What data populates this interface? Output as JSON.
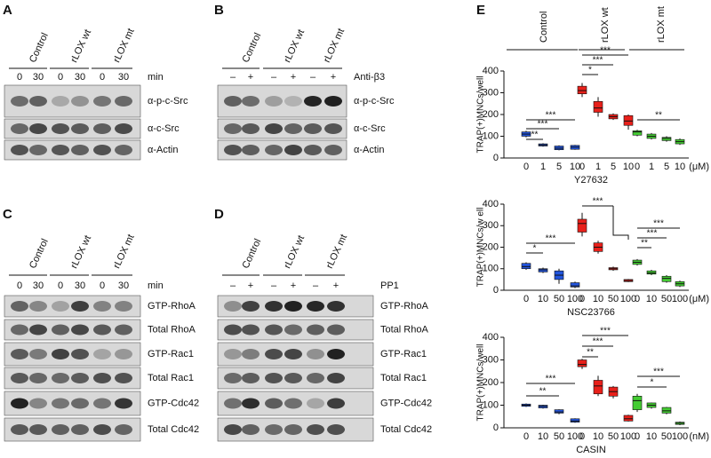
{
  "blots": [
    {
      "letter": "A",
      "headers": [
        "Control",
        "rLOX wt",
        "rLOX mt"
      ],
      "lanes": [
        "0",
        "30",
        "0",
        "30",
        "0",
        "30"
      ],
      "unit": "min",
      "rows": [
        "α-p-c-Src",
        "α-c-Src",
        "α-Actin"
      ]
    },
    {
      "letter": "B",
      "headers": [
        "Control",
        "rLOX wt",
        "rLOX mt"
      ],
      "lanes": [
        "–",
        "+",
        "–",
        "+",
        "–",
        "+"
      ],
      "unit": "Anti-β3",
      "rows": [
        "α-p-c-Src",
        "α-c-Src",
        "α-Actin"
      ]
    },
    {
      "letter": "C",
      "headers": [
        "Control",
        "rLOX wt",
        "rLOX mt"
      ],
      "lanes": [
        "0",
        "30",
        "0",
        "30",
        "0",
        "30"
      ],
      "unit": "min",
      "rows": [
        "GTP-RhoA",
        "Total RhoA",
        "GTP-Rac1",
        "Total Rac1",
        "GTP-Cdc42",
        "Total Cdc42"
      ]
    },
    {
      "letter": "D",
      "headers": [
        "Control",
        "rLOX wt",
        "rLOX mt"
      ],
      "lanes": [
        "–",
        "+",
        "–",
        "+",
        "–",
        "+"
      ],
      "unit": "PP1",
      "rows": [
        "GTP-RhoA",
        "Total RhoA",
        "GTP-Rac1",
        "Total Rac1",
        "GTP-Cdc42",
        "Total Cdc42"
      ]
    }
  ],
  "panel_e": {
    "letter": "E",
    "groups": [
      "Control",
      "rLOX wt",
      "rLOX mt"
    ]
  },
  "chart_data": [
    {
      "type": "box",
      "y_label": "TRAP(+)MNCs/well",
      "x_label": "Y27632",
      "unit": "(μM)",
      "categories": [
        "0",
        "1",
        "5",
        "10"
      ],
      "ylim": [
        0,
        400
      ],
      "yticks": [
        0,
        100,
        200,
        300,
        400
      ],
      "series": [
        {
          "color": "#2255dd",
          "median": [
            110,
            60,
            45,
            50
          ],
          "q1": [
            100,
            55,
            38,
            40
          ],
          "q3": [
            120,
            65,
            55,
            58
          ],
          "min": [
            95,
            52,
            35,
            38
          ],
          "max": [
            125,
            68,
            58,
            60
          ]
        },
        {
          "color": "#e8201a",
          "median": [
            310,
            230,
            190,
            170
          ],
          "q1": [
            295,
            210,
            180,
            150
          ],
          "q3": [
            330,
            260,
            200,
            195
          ],
          "min": [
            280,
            190,
            175,
            130
          ],
          "max": [
            345,
            280,
            205,
            200
          ]
        },
        {
          "color": "#44cc33",
          "median": [
            120,
            100,
            90,
            75
          ],
          "q1": [
            105,
            90,
            80,
            65
          ],
          "q3": [
            125,
            110,
            95,
            85
          ],
          "min": [
            100,
            85,
            75,
            60
          ],
          "max": [
            130,
            115,
            100,
            90
          ]
        }
      ],
      "annotations": [
        "***",
        "***",
        "**",
        "***",
        "***",
        "*",
        "**"
      ]
    },
    {
      "type": "box",
      "y_label": "TRAP(+)MNCs/w ell",
      "x_label": "NSC23766",
      "unit": "(μM)",
      "categories": [
        "0",
        "10",
        "50",
        "100"
      ],
      "ylim": [
        0,
        400
      ],
      "yticks": [
        0,
        100,
        200,
        300,
        400
      ],
      "series": [
        {
          "color": "#2255dd",
          "median": [
            110,
            95,
            70,
            20
          ],
          "q1": [
            100,
            85,
            50,
            15
          ],
          "q3": [
            125,
            100,
            90,
            35
          ],
          "min": [
            95,
            80,
            30,
            10
          ],
          "max": [
            130,
            105,
            100,
            40
          ]
        },
        {
          "color": "#e8201a",
          "median": [
            310,
            200,
            100,
            45
          ],
          "q1": [
            270,
            180,
            95,
            40
          ],
          "q3": [
            330,
            220,
            105,
            50
          ],
          "min": [
            250,
            170,
            90,
            38
          ],
          "max": [
            360,
            230,
            110,
            52
          ]
        },
        {
          "color": "#44cc33",
          "median": [
            130,
            80,
            55,
            30
          ],
          "q1": [
            120,
            75,
            40,
            20
          ],
          "q3": [
            140,
            90,
            65,
            40
          ],
          "min": [
            115,
            70,
            35,
            15
          ],
          "max": [
            145,
            95,
            70,
            45
          ]
        }
      ],
      "annotations": [
        "***",
        "*",
        "***",
        "***",
        "***",
        "**"
      ]
    },
    {
      "type": "box",
      "y_label": "TRAP(+)MNCs/well",
      "x_label": "CASIN",
      "unit": "(nM)",
      "categories": [
        "0",
        "10",
        "50",
        "100"
      ],
      "ylim": [
        0,
        400
      ],
      "yticks": [
        0,
        100,
        200,
        300,
        400
      ],
      "series": [
        {
          "color": "#2255dd",
          "median": [
            100,
            95,
            70,
            30
          ],
          "q1": [
            95,
            88,
            65,
            25
          ],
          "q3": [
            105,
            100,
            80,
            40
          ],
          "min": [
            92,
            85,
            60,
            22
          ],
          "max": [
            108,
            102,
            82,
            42
          ]
        },
        {
          "color": "#e8201a",
          "median": [
            280,
            185,
            160,
            40
          ],
          "q1": [
            270,
            150,
            140,
            30
          ],
          "q3": [
            300,
            210,
            180,
            55
          ],
          "min": [
            260,
            140,
            130,
            28
          ],
          "max": [
            305,
            230,
            185,
            58
          ]
        },
        {
          "color": "#44cc33",
          "median": [
            120,
            100,
            75,
            20
          ],
          "q1": [
            80,
            90,
            65,
            15
          ],
          "q3": [
            140,
            110,
            90,
            25
          ],
          "min": [
            70,
            85,
            60,
            12
          ],
          "max": [
            150,
            112,
            92,
            28
          ]
        }
      ],
      "annotations": [
        "***",
        "**",
        "***",
        "***",
        "**",
        "***",
        "*"
      ]
    }
  ]
}
